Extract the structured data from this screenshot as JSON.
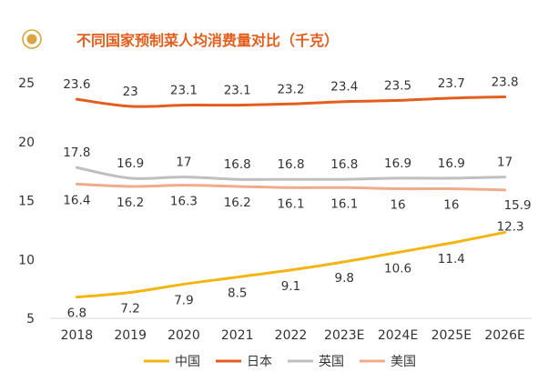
{
  "title": "不同国家预制菜人均消费量对比（千克）",
  "chart_data": {
    "type": "line",
    "title": "不同国家预制菜人均消费量对比（千克）",
    "xlabel": "",
    "ylabel": "",
    "x": [
      "2018",
      "2019",
      "2020",
      "2021",
      "2022",
      "2023E",
      "2024E",
      "2025E",
      "2026E"
    ],
    "ylim": [
      5,
      25
    ],
    "yticks": [
      5,
      10,
      15,
      20,
      25
    ],
    "grid": false,
    "legend": "bottom",
    "series": [
      {
        "name": "中国",
        "color": "#F2B514",
        "values": [
          6.8,
          7.2,
          7.9,
          8.5,
          9.1,
          9.8,
          10.6,
          11.4,
          12.3
        ]
      },
      {
        "name": "日本",
        "color": "#E35D1C",
        "values": [
          23.6,
          23,
          23.1,
          23.1,
          23.2,
          23.4,
          23.5,
          23.7,
          23.8
        ]
      },
      {
        "name": "英国",
        "color": "#BFBFBF",
        "values": [
          17.8,
          16.9,
          17,
          16.8,
          16.8,
          16.8,
          16.9,
          16.9,
          17
        ]
      },
      {
        "name": "美国",
        "color": "#F0AB8C",
        "values": [
          16.4,
          16.2,
          16.3,
          16.2,
          16.1,
          16.1,
          16,
          16,
          15.9
        ]
      }
    ]
  }
}
